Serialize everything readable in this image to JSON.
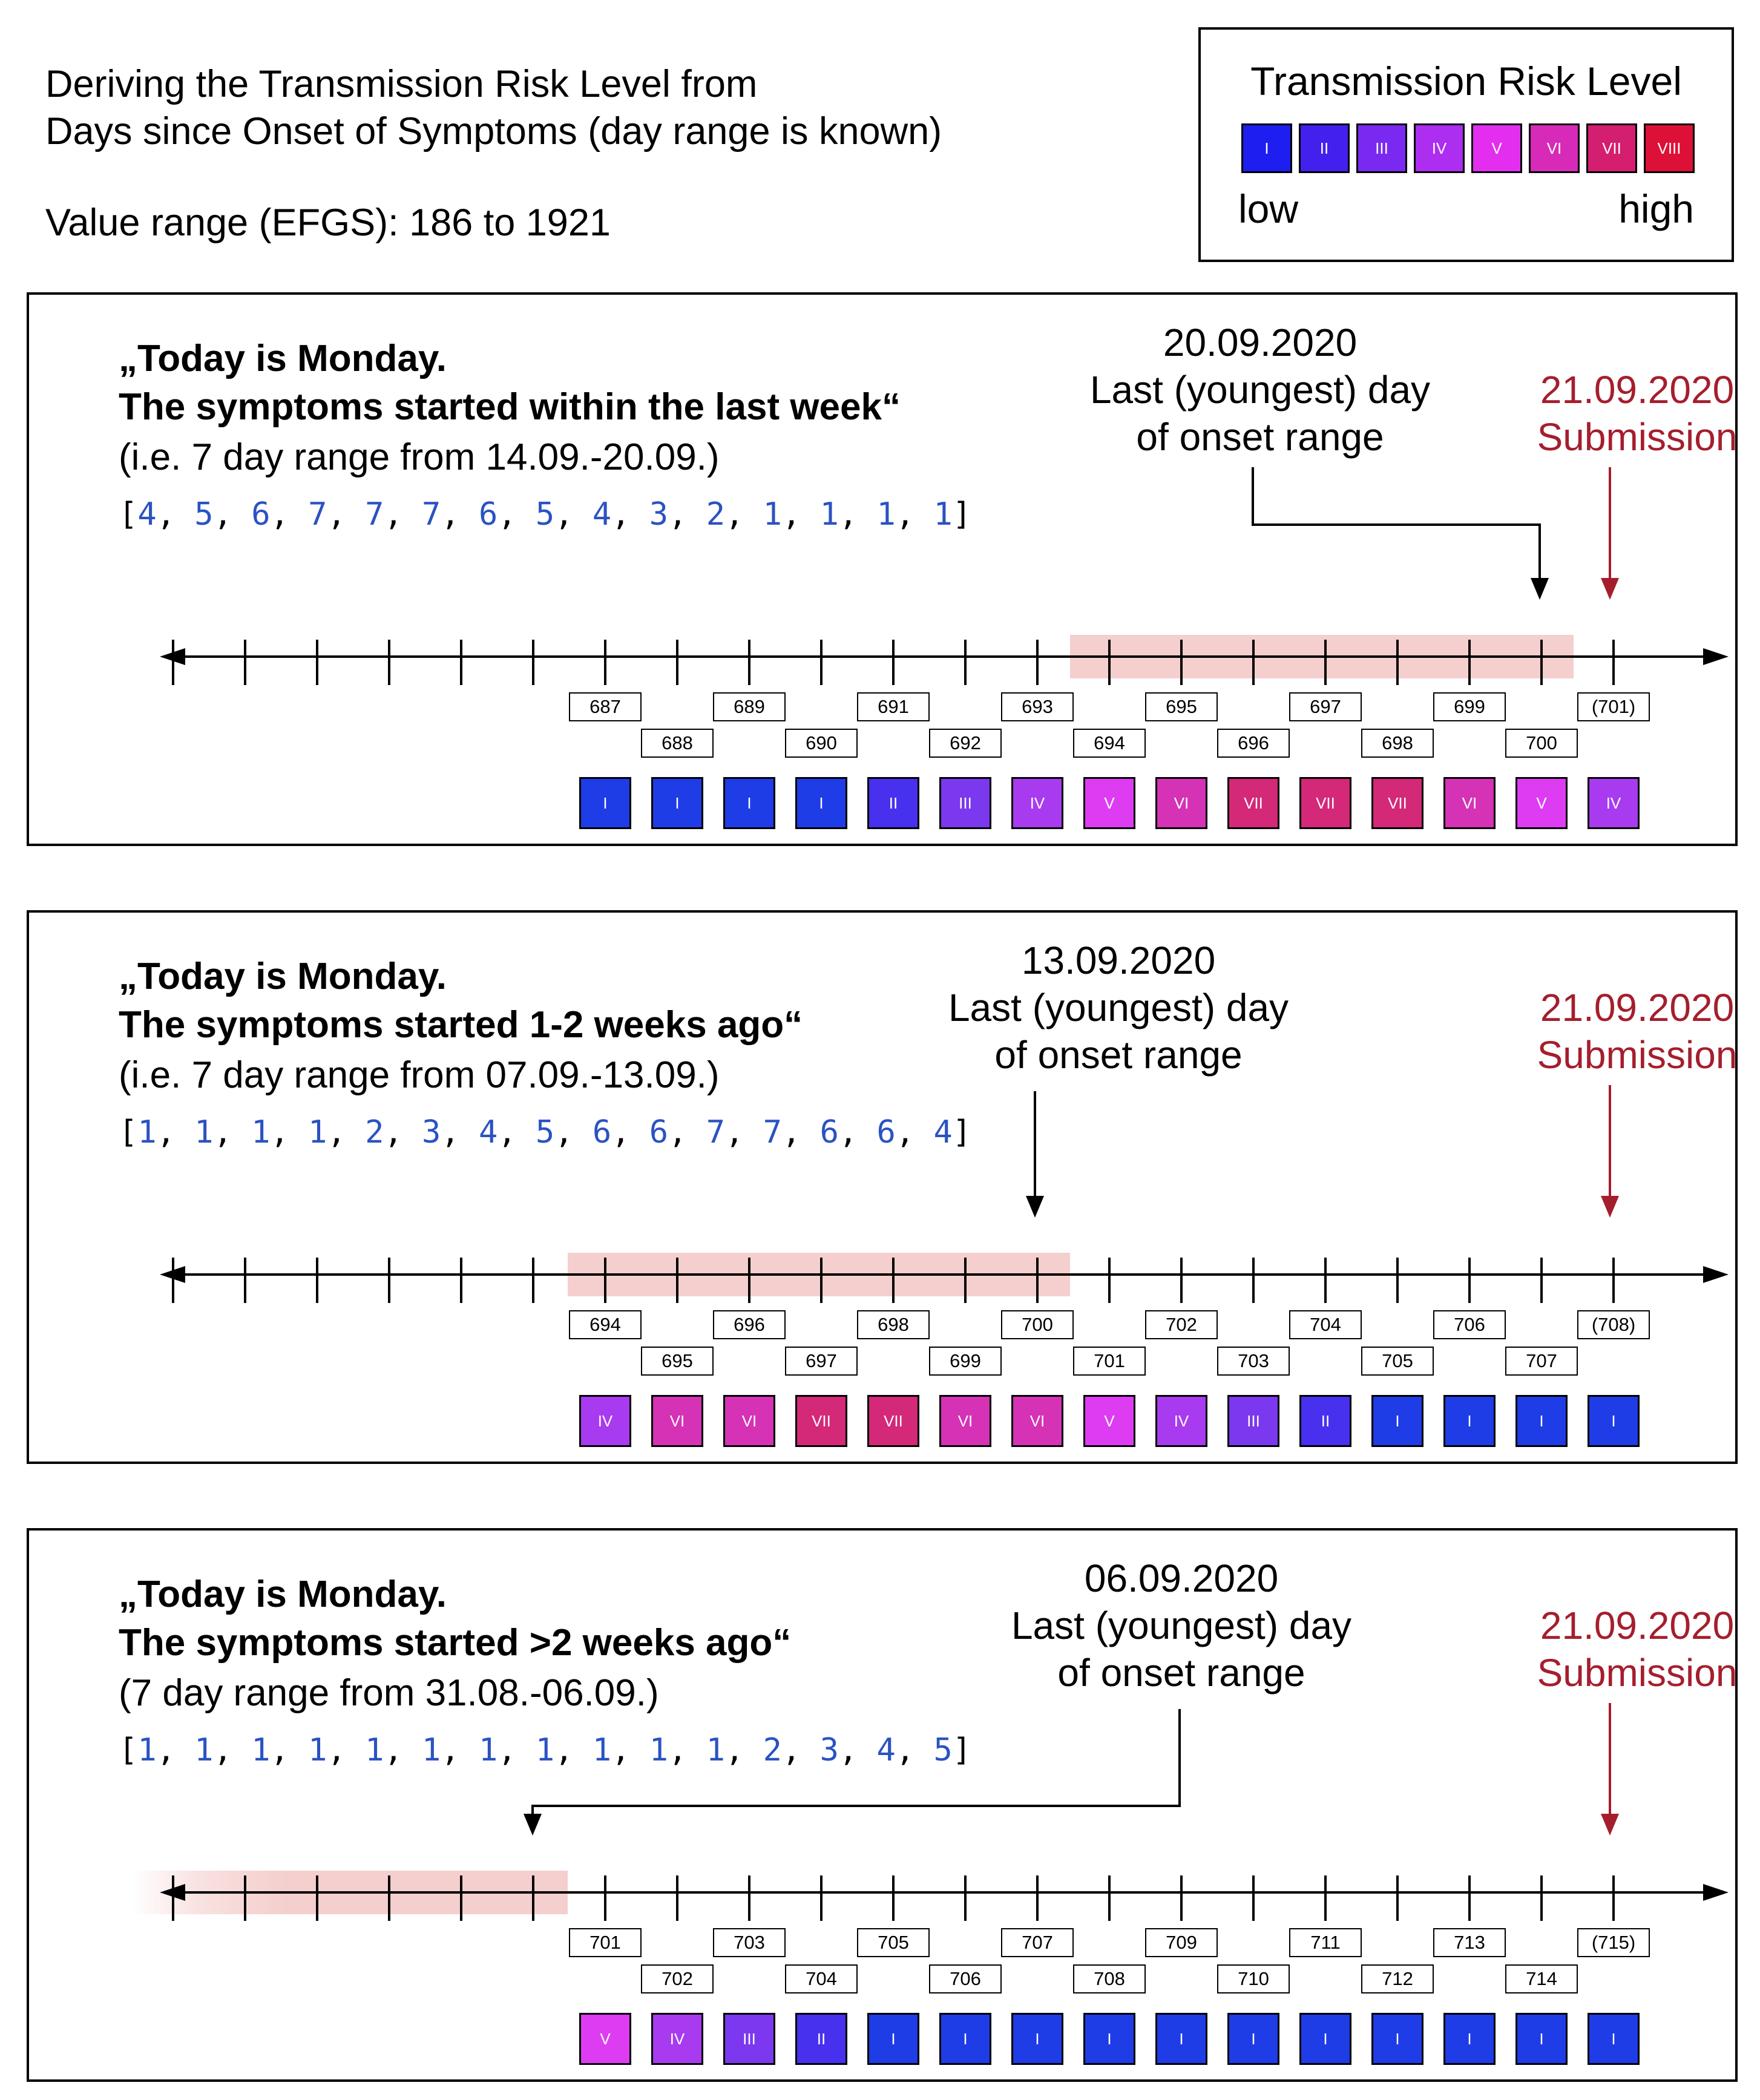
{
  "header": {
    "title_line1": "Deriving the Transmission Risk Level from",
    "title_line2": "Days since Onset of Symptoms (day range is known)",
    "value_range": "Value range (EFGS): 186 to 1921"
  },
  "legend": {
    "title": "Transmission Risk Level",
    "levels": [
      {
        "label": "I",
        "color": "#1e1ef0"
      },
      {
        "label": "II",
        "color": "#4420ef"
      },
      {
        "label": "III",
        "color": "#7a2af0"
      },
      {
        "label": "IV",
        "color": "#ad2df0"
      },
      {
        "label": "V",
        "color": "#e32ef0"
      },
      {
        "label": "VI",
        "color": "#d72ab8"
      },
      {
        "label": "VII",
        "color": "#d41e70"
      },
      {
        "label": "VIII",
        "color": "#dd1037"
      }
    ],
    "low_label": "low",
    "high_label": "high"
  },
  "level_colors": {
    "I": "#1e3de6",
    "II": "#4730ee",
    "III": "#7b38ee",
    "IV": "#a83bf0",
    "V": "#de3cf2",
    "VI": "#d532b6",
    "VII": "#d42878"
  },
  "panels": [
    {
      "quote_line1": "„Today is Monday.",
      "quote_line2": "The symptoms started within the last week“",
      "range_text": "(i.e. 7 day range from 14.09.-20.09.)",
      "array": [
        4,
        5,
        6,
        7,
        7,
        7,
        6,
        5,
        4,
        3,
        2,
        1,
        1,
        1,
        1
      ],
      "annotation": {
        "date": "20.09.2020",
        "line2": "Last (youngest) day",
        "line3": "of onset range"
      },
      "submission": {
        "date": "21.09.2020",
        "label": "Submission"
      },
      "days": [
        "687",
        "688",
        "689",
        "690",
        "691",
        "692",
        "693",
        "694",
        "695",
        "696",
        "697",
        "698",
        "699",
        "700",
        "(701)"
      ],
      "risk_levels": [
        "I",
        "I",
        "I",
        "I",
        "II",
        "III",
        "IV",
        "V",
        "VI",
        "VII",
        "VII",
        "VII",
        "VI",
        "V",
        "IV"
      ],
      "highlight_ticks": [
        13,
        20
      ]
    },
    {
      "quote_line1": "„Today is Monday.",
      "quote_line2": "The symptoms started 1-2 weeks ago“",
      "range_text": "(i.e. 7 day range from 07.09.-13.09.)",
      "array": [
        1,
        1,
        1,
        1,
        2,
        3,
        4,
        5,
        6,
        6,
        7,
        7,
        6,
        6,
        4
      ],
      "annotation": {
        "date": "13.09.2020",
        "line2": "Last (youngest) day",
        "line3": "of onset range"
      },
      "submission": {
        "date": "21.09.2020",
        "label": "Submission"
      },
      "days": [
        "694",
        "695",
        "696",
        "697",
        "698",
        "699",
        "700",
        "701",
        "702",
        "703",
        "704",
        "705",
        "706",
        "707",
        "(708)"
      ],
      "risk_levels": [
        "IV",
        "VI",
        "VI",
        "VII",
        "VII",
        "VI",
        "VI",
        "V",
        "IV",
        "III",
        "II",
        "I",
        "I",
        "I",
        "I"
      ],
      "highlight_ticks": [
        6,
        13
      ]
    },
    {
      "quote_line1": "„Today is Monday.",
      "quote_line2": "The symptoms started >2 weeks ago“",
      "range_text": "(7 day range from 31.08.-06.09.)",
      "array": [
        1,
        1,
        1,
        1,
        1,
        1,
        1,
        1,
        1,
        1,
        1,
        2,
        3,
        4,
        5
      ],
      "annotation": {
        "date": "06.09.2020",
        "line2": "Last (youngest) day",
        "line3": "of onset range"
      },
      "submission": {
        "date": "21.09.2020",
        "label": "Submission"
      },
      "days": [
        "701",
        "702",
        "703",
        "704",
        "705",
        "706",
        "707",
        "708",
        "709",
        "710",
        "711",
        "712",
        "713",
        "714",
        "(715)"
      ],
      "risk_levels": [
        "V",
        "IV",
        "III",
        "II",
        "I",
        "I",
        "I",
        "I",
        "I",
        "I",
        "I",
        "I",
        "I",
        "I",
        "I"
      ],
      "highlight_ticks": [
        0,
        6
      ]
    }
  ]
}
